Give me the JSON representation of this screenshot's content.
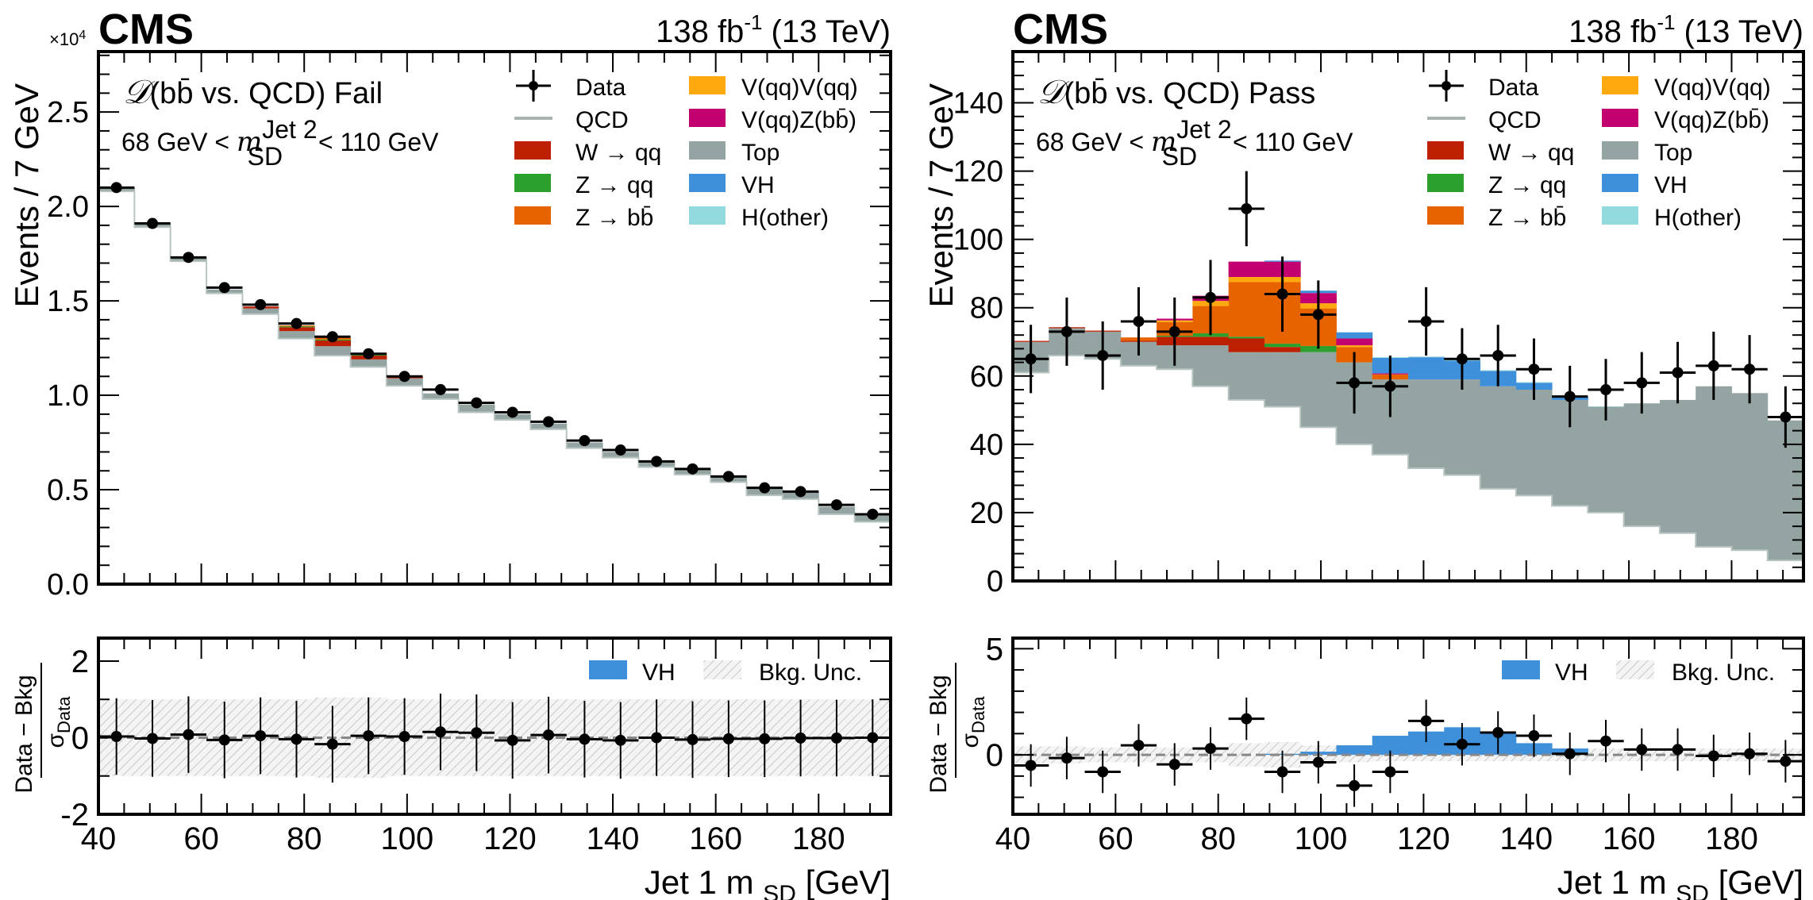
{
  "chart_data": [
    {
      "type": "bar",
      "stacked": true,
      "panel": "Fail",
      "experiment": "CMS",
      "lumi": "138 fb",
      "lumi_sup": "-1",
      "energy": "(13 TeV)",
      "category_label": "(bb̄ vs. QCD) Fail",
      "category_symbol": "𝒟",
      "mass_window": {
        "pre": "68 GeV <",
        "var": "m",
        "sup": "Jet 2",
        "sub": "SD",
        "post": "< 110 GeV"
      },
      "ylabel": "Events / 7 GeV",
      "y_multiplier": "×10",
      "y_multiplier_exp": "4",
      "xlabel": "Jet 1 m",
      "xlabel_sub": "SD",
      "xlabel_unit": "[GeV]",
      "xlim": [
        40,
        194
      ],
      "ylim": [
        0,
        2.82
      ],
      "yticks": [
        0.0,
        0.5,
        1.0,
        1.5,
        2.0,
        2.5
      ],
      "ytick_labels": [
        "0.0",
        "0.5",
        "1.0",
        "1.5",
        "2.0",
        "2.5"
      ],
      "xticks": [
        40,
        60,
        80,
        100,
        120,
        140,
        160,
        180
      ],
      "xtick_labels": [
        "40",
        "60",
        "80",
        "100",
        "120",
        "140",
        "160",
        "180"
      ],
      "bin_edges": [
        40,
        47,
        54,
        61,
        68,
        75,
        82,
        89,
        96,
        103,
        110,
        117,
        124,
        131,
        138,
        145,
        152,
        159,
        166,
        173,
        180,
        187,
        194
      ],
      "data": [
        2.1,
        1.91,
        1.73,
        1.57,
        1.48,
        1.38,
        1.31,
        1.22,
        1.1,
        1.03,
        0.96,
        0.91,
        0.86,
        0.76,
        0.71,
        0.65,
        0.61,
        0.57,
        0.51,
        0.49,
        0.42,
        0.37
      ],
      "series": [
        {
          "name": "QCD",
          "values": [
            2.08,
            1.89,
            1.71,
            1.54,
            1.43,
            1.3,
            1.21,
            1.15,
            1.05,
            0.98,
            0.91,
            0.87,
            0.82,
            0.72,
            0.67,
            0.62,
            0.58,
            0.54,
            0.47,
            0.45,
            0.37,
            0.33
          ]
        },
        {
          "name": "Top",
          "values": [
            0.02,
            0.02,
            0.02,
            0.02,
            0.03,
            0.04,
            0.05,
            0.04,
            0.04,
            0.03,
            0.04,
            0.03,
            0.03,
            0.03,
            0.03,
            0.03,
            0.03,
            0.03,
            0.04,
            0.04,
            0.04,
            0.04
          ]
        },
        {
          "name": "W → qq",
          "values": [
            0,
            0,
            0,
            0,
            0.01,
            0.02,
            0.03,
            0.02,
            0.01,
            0,
            0,
            0,
            0,
            0,
            0,
            0,
            0,
            0,
            0,
            0,
            0,
            0
          ]
        },
        {
          "name": "Z → qq",
          "values": [
            0,
            0,
            0,
            0,
            0,
            0.005,
            0.005,
            0.005,
            0,
            0,
            0,
            0,
            0,
            0,
            0,
            0,
            0,
            0,
            0,
            0,
            0,
            0
          ]
        },
        {
          "name": "Z → bb̄",
          "values": [
            0,
            0,
            0,
            0,
            0,
            0.005,
            0.01,
            0.01,
            0.005,
            0,
            0,
            0,
            0,
            0,
            0,
            0,
            0,
            0,
            0,
            0,
            0,
            0
          ]
        },
        {
          "name": "V(qq)V(qq)",
          "values": [
            0,
            0,
            0,
            0,
            0,
            0,
            0,
            0,
            0,
            0,
            0,
            0,
            0,
            0,
            0,
            0,
            0,
            0,
            0,
            0,
            0,
            0
          ]
        },
        {
          "name": "V(qq)Z(bb̄)",
          "values": [
            0,
            0,
            0,
            0,
            0,
            0,
            0,
            0,
            0,
            0,
            0,
            0,
            0,
            0,
            0,
            0,
            0,
            0,
            0,
            0,
            0,
            0
          ]
        },
        {
          "name": "VH",
          "values": [
            0,
            0,
            0,
            0,
            0,
            0,
            0,
            0,
            0,
            0,
            0,
            0,
            0,
            0,
            0,
            0,
            0,
            0,
            0,
            0,
            0,
            0
          ]
        },
        {
          "name": "H(other)",
          "values": [
            0,
            0,
            0,
            0,
            0,
            0,
            0,
            0,
            0,
            0,
            0,
            0,
            0,
            0,
            0,
            0,
            0,
            0,
            0,
            0,
            0,
            0
          ]
        }
      ],
      "ratio": {
        "ylabel_num": "Data − Bkg",
        "ylabel_den": "σ",
        "ylabel_den_sub": "Data",
        "ylim": [
          -2,
          2.6
        ],
        "yticks": [
          -2,
          0,
          2
        ],
        "ytick_labels": [
          "-2",
          "0",
          "2"
        ],
        "pulls": [
          0.03,
          -0.02,
          0.08,
          -0.06,
          0.05,
          -0.04,
          -0.17,
          0.05,
          0.03,
          0.15,
          0.13,
          -0.07,
          0.07,
          -0.04,
          -0.07,
          0.0,
          -0.05,
          -0.03,
          -0.03,
          -0.01,
          -0.01,
          0.0
        ],
        "bkg_unc": [
          1.0,
          1.0,
          1.0,
          1.0,
          1.0,
          1.0,
          1.05,
          1.05,
          1.0,
          1.0,
          1.0,
          1.0,
          1.0,
          1.0,
          1.0,
          1.0,
          1.0,
          1.0,
          1.0,
          1.0,
          1.0,
          1.0
        ],
        "vh": [
          0,
          0,
          0,
          0,
          0,
          0,
          0,
          0,
          0,
          0,
          0,
          0,
          0,
          0,
          0,
          0,
          0,
          0,
          0,
          0,
          0,
          0
        ],
        "legend": [
          "VH",
          "Bkg. Unc."
        ]
      }
    },
    {
      "type": "bar",
      "stacked": true,
      "panel": "Pass",
      "experiment": "CMS",
      "lumi": "138 fb",
      "lumi_sup": "-1",
      "energy": "(13 TeV)",
      "category_label": "(bb̄ vs. QCD) Pass",
      "category_symbol": "𝒟",
      "mass_window": {
        "pre": "68 GeV <",
        "var": "m",
        "sup": "Jet 2",
        "sub": "SD",
        "post": "< 110 GeV"
      },
      "ylabel": "Events / 7 GeV",
      "xlabel": "Jet 1 m",
      "xlabel_sub": "SD",
      "xlabel_unit": "[GeV]",
      "xlim": [
        40,
        194
      ],
      "ylim": [
        0,
        155
      ],
      "yticks": [
        0,
        20,
        40,
        60,
        80,
        100,
        120,
        140
      ],
      "ytick_labels": [
        "0",
        "20",
        "40",
        "60",
        "80",
        "100",
        "120",
        "140"
      ],
      "xticks": [
        40,
        60,
        80,
        100,
        120,
        140,
        160,
        180
      ],
      "xtick_labels": [
        "40",
        "60",
        "80",
        "100",
        "120",
        "140",
        "160",
        "180"
      ],
      "bin_edges": [
        40,
        47,
        54,
        61,
        68,
        75,
        82,
        89,
        96,
        103,
        110,
        117,
        124,
        131,
        138,
        145,
        152,
        159,
        166,
        173,
        180,
        187,
        194
      ],
      "data": [
        65,
        73,
        66,
        76,
        73,
        83,
        109,
        84,
        78,
        58,
        57,
        76,
        65,
        66,
        62,
        54,
        56,
        58,
        61,
        63,
        62,
        48
      ],
      "data_err_up": [
        10,
        10,
        10,
        10,
        10,
        11,
        11,
        11,
        10,
        9,
        9,
        10,
        9,
        9,
        9,
        9,
        9,
        9,
        9,
        10,
        10,
        9
      ],
      "series": [
        {
          "name": "QCD",
          "values": [
            61,
            66,
            65,
            63,
            62,
            57,
            53,
            51,
            45,
            40,
            37,
            33,
            31,
            27,
            25,
            22,
            20,
            16,
            14,
            10,
            9,
            6
          ]
        },
        {
          "name": "Top",
          "values": [
            9,
            8,
            8,
            7,
            7,
            12,
            14,
            16,
            22,
            24,
            22,
            26,
            28,
            30,
            31,
            31,
            31,
            36,
            39,
            47,
            46,
            41
          ]
        },
        {
          "name": "W → qq",
          "values": [
            0.3,
            0.3,
            0.3,
            0.3,
            2.5,
            2.5,
            4.0,
            1.5,
            0,
            0,
            0,
            0,
            0,
            0,
            0,
            0,
            0,
            0,
            0,
            0,
            0,
            0
          ]
        },
        {
          "name": "Z → qq",
          "values": [
            0,
            0,
            0,
            0,
            0.3,
            1.0,
            0.5,
            1.0,
            1.8,
            0,
            0,
            0,
            0,
            0,
            0,
            0,
            0,
            0,
            0,
            0,
            0,
            0
          ]
        },
        {
          "name": "Z → bb̄",
          "values": [
            0,
            0,
            0,
            1.0,
            4.0,
            8.0,
            16,
            18,
            11,
            4.5,
            1.5,
            0,
            0,
            0,
            0,
            0,
            0,
            0,
            0,
            0,
            0,
            0
          ]
        },
        {
          "name": "V(qq)V(qq)",
          "values": [
            0,
            0,
            0,
            0,
            0.5,
            1.5,
            1.5,
            1.5,
            1.5,
            0.5,
            0,
            0,
            0,
            0,
            0,
            0,
            0,
            0,
            0,
            0,
            0,
            0
          ]
        },
        {
          "name": "V(qq)Z(bb̄)",
          "values": [
            0,
            0,
            0,
            0,
            0.5,
            1.5,
            4.5,
            4.5,
            3.0,
            2.0,
            0.3,
            0,
            0,
            0,
            0,
            0,
            0,
            0,
            0,
            0,
            0,
            0
          ]
        },
        {
          "name": "VH",
          "values": [
            0,
            0,
            0,
            0,
            0,
            0,
            0,
            0.3,
            0.7,
            1.8,
            4.5,
            6.5,
            5.5,
            4.5,
            2.0,
            0.8,
            0,
            0,
            0,
            0,
            0,
            0
          ]
        },
        {
          "name": "H(other)",
          "values": [
            0,
            0,
            0,
            0,
            0,
            0,
            0,
            0,
            0,
            0,
            0.2,
            0.2,
            0.2,
            0.2,
            0.2,
            0.1,
            0.1,
            0,
            0,
            0,
            0,
            0
          ]
        }
      ],
      "ratio": {
        "ylabel_num": "Data − Bkg",
        "ylabel_den": "σ",
        "ylabel_den_sub": "Data",
        "ylim": [
          -2.8,
          5.5
        ],
        "yticks": [
          0,
          5
        ],
        "ytick_labels": [
          "0",
          "5"
        ],
        "pulls": [
          -0.5,
          -0.15,
          -0.8,
          0.45,
          -0.45,
          0.3,
          1.7,
          -0.8,
          -0.35,
          -1.45,
          -0.8,
          1.6,
          0.5,
          1.05,
          0.9,
          0.05,
          0.65,
          0.25,
          0.25,
          -0.05,
          0.05,
          -0.3
        ],
        "bkg_unc": [
          0.4,
          0.4,
          0.35,
          0.35,
          0.35,
          0.35,
          0.55,
          0.6,
          0.45,
          0.35,
          0.3,
          0.3,
          0.3,
          0.3,
          0.3,
          0.3,
          0.3,
          0.3,
          0.3,
          0.3,
          0.3,
          0.3
        ],
        "vh": [
          0,
          0,
          0,
          0,
          0,
          0,
          0,
          0.05,
          0.15,
          0.45,
          0.9,
          1.1,
          1.3,
          1.0,
          0.55,
          0.3,
          0,
          0,
          0,
          0,
          0,
          0
        ],
        "legend": [
          "VH",
          "Bkg. Unc."
        ]
      }
    }
  ],
  "legend": {
    "col1": [
      "Data",
      "QCD",
      "W → qq",
      "Z → qq",
      "Z → bb̄"
    ],
    "col2": [
      "V(qq)V(qq)",
      "V(qq)Z(bb̄)",
      "Top",
      "VH",
      "H(other)"
    ]
  },
  "colors": {
    "QCD": "#94a4a2",
    "Top": "#94a4a2",
    "W → qq": "#bd1f01",
    "Z → qq": "#2ca02c",
    "Z → bb̄": "#e76300",
    "V(qq)V(qq)": "#ffa90e",
    "V(qq)Z(bb̄)": "#c20070",
    "VH": "#3f90da",
    "H(other)": "#92dadd",
    "data": "#000000",
    "unc_hatch": "#bbbbbb"
  }
}
